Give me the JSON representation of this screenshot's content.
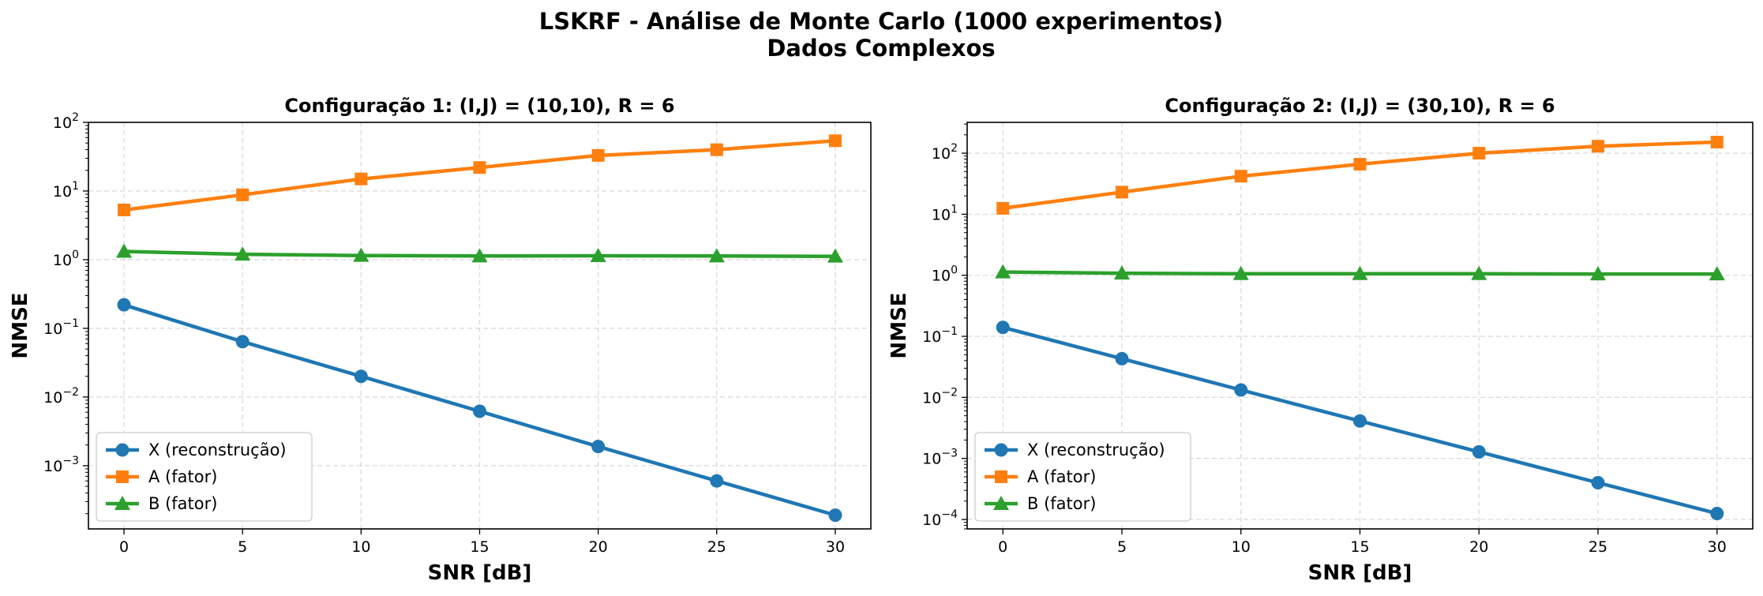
{
  "figure": {
    "title_line1": "LSKRF - Análise de Monte Carlo (1000 experimentos)",
    "title_line2": "Dados Complexos"
  },
  "colors": {
    "X": "#1f77b4",
    "A": "#ff7f0e",
    "B": "#2ca02c"
  },
  "chart_data": [
    {
      "type": "line",
      "title": "Configuração 1: (I,J) = (10,10), R = 6",
      "xlabel": "SNR [dB]",
      "ylabel": "NMSE",
      "yscale": "log",
      "xlim": [
        -1.5,
        31.5
      ],
      "ylim": [
        0.00012,
        100
      ],
      "xticks": [
        0,
        5,
        10,
        15,
        20,
        25,
        30
      ],
      "yticks": [
        0.001,
        0.01,
        0.1,
        1,
        10,
        100
      ],
      "ytick_labels": [
        [
          "10",
          "−3"
        ],
        [
          "10",
          "−2"
        ],
        [
          "10",
          "−1"
        ],
        [
          "10",
          "0"
        ],
        [
          "10",
          "1"
        ],
        [
          "10",
          "2"
        ]
      ],
      "grid": true,
      "legend_position": "lower-left",
      "x": [
        0,
        5,
        10,
        15,
        20,
        25,
        30
      ],
      "series": [
        {
          "name": "X (reconstrução)",
          "marker": "circle",
          "color": "#1f77b4",
          "values": [
            0.22,
            0.064,
            0.02,
            0.0062,
            0.0019,
            0.0006,
            0.00019
          ]
        },
        {
          "name": "A (fator)",
          "marker": "square",
          "color": "#ff7f0e",
          "values": [
            5.3,
            8.8,
            15,
            22,
            33,
            40,
            54
          ]
        },
        {
          "name": "B (fator)",
          "marker": "triangle",
          "color": "#2ca02c",
          "values": [
            1.32,
            1.2,
            1.15,
            1.13,
            1.14,
            1.13,
            1.12
          ]
        }
      ]
    },
    {
      "type": "line",
      "title": "Configuração 2: (I,J) = (30,10), R = 6",
      "xlabel": "SNR [dB]",
      "ylabel": "NMSE",
      "yscale": "log",
      "xlim": [
        -1.5,
        31.5
      ],
      "ylim": [
        7e-05,
        320
      ],
      "xticks": [
        0,
        5,
        10,
        15,
        20,
        25,
        30
      ],
      "yticks": [
        0.0001,
        0.001,
        0.01,
        0.1,
        1,
        10,
        100
      ],
      "ytick_labels": [
        [
          "10",
          "−4"
        ],
        [
          "10",
          "−3"
        ],
        [
          "10",
          "−2"
        ],
        [
          "10",
          "−1"
        ],
        [
          "10",
          "0"
        ],
        [
          "10",
          "1"
        ],
        [
          "10",
          "2"
        ]
      ],
      "grid": true,
      "legend_position": "lower-left",
      "x": [
        0,
        5,
        10,
        15,
        20,
        25,
        30
      ],
      "series": [
        {
          "name": "X (reconstrução)",
          "marker": "circle",
          "color": "#1f77b4",
          "values": [
            0.14,
            0.043,
            0.0132,
            0.0041,
            0.00128,
            0.0004,
            0.000125
          ]
        },
        {
          "name": "A (fator)",
          "marker": "square",
          "color": "#ff7f0e",
          "values": [
            12.5,
            23,
            42,
            66,
            100,
            130,
            152
          ]
        },
        {
          "name": "B (fator)",
          "marker": "triangle",
          "color": "#2ca02c",
          "values": [
            1.13,
            1.08,
            1.06,
            1.06,
            1.06,
            1.05,
            1.05
          ]
        }
      ]
    }
  ]
}
